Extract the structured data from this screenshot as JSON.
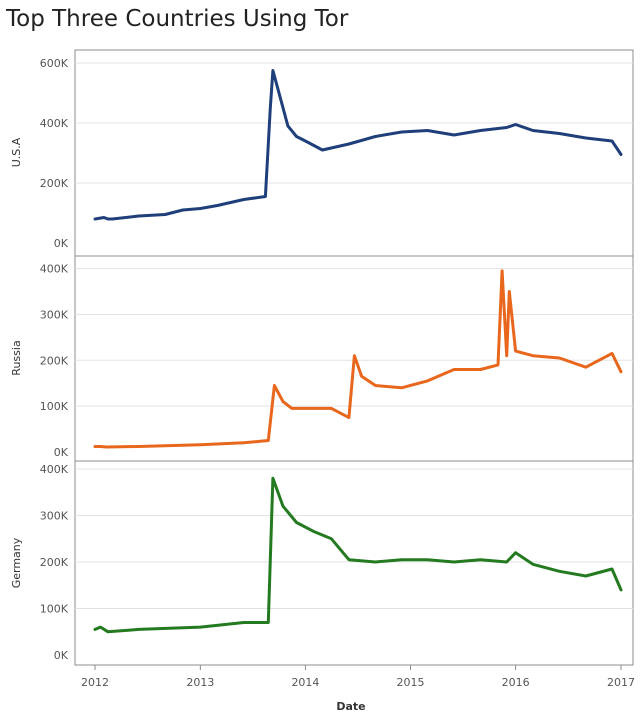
{
  "title": "Top Three Countries Using Tor",
  "chart_data": {
    "type": "line",
    "title": "Top Three Countries Using Tor",
    "xlabel": "Date",
    "x_ticks": [
      "2012",
      "2013",
      "2014",
      "2015",
      "2016",
      "2017"
    ],
    "xlim": [
      "2012-01-01",
      "2017-01-15"
    ],
    "grid": true,
    "panels": [
      {
        "name": "U.S.A",
        "color": "#1f3f7a",
        "ylim": [
          0,
          620000
        ],
        "y_ticks": [
          {
            "value": 0,
            "label": "0K"
          },
          {
            "value": 200000,
            "label": "200K"
          },
          {
            "value": 400000,
            "label": "400K"
          },
          {
            "value": 600000,
            "label": "600K"
          }
        ],
        "x": [
          "2012-01-01",
          "2012-02-01",
          "2012-02-15",
          "2012-03-01",
          "2012-06-01",
          "2012-09-01",
          "2012-11-01",
          "2013-01-01",
          "2013-03-01",
          "2013-06-01",
          "2013-08-15",
          "2013-09-01",
          "2013-09-10",
          "2013-10-01",
          "2013-11-01",
          "2013-12-01",
          "2014-01-01",
          "2014-03-01",
          "2014-06-01",
          "2014-09-01",
          "2014-12-01",
          "2015-03-01",
          "2015-06-01",
          "2015-09-01",
          "2015-12-01",
          "2016-01-01",
          "2016-03-01",
          "2016-06-01",
          "2016-09-01",
          "2016-12-01",
          "2017-01-01"
        ],
        "y": [
          80000,
          85000,
          80000,
          80000,
          90000,
          95000,
          110000,
          115000,
          125000,
          145000,
          155000,
          450000,
          575000,
          500000,
          390000,
          355000,
          340000,
          310000,
          330000,
          355000,
          370000,
          375000,
          360000,
          375000,
          385000,
          395000,
          375000,
          365000,
          350000,
          340000,
          295000
        ]
      },
      {
        "name": "Russia",
        "color": "#e8671c",
        "ylim": [
          0,
          410000
        ],
        "y_ticks": [
          {
            "value": 0,
            "label": "0K"
          },
          {
            "value": 100000,
            "label": "100K"
          },
          {
            "value": 200000,
            "label": "200K"
          },
          {
            "value": 300000,
            "label": "300K"
          },
          {
            "value": 400000,
            "label": "400K"
          }
        ],
        "x": [
          "2012-01-01",
          "2012-01-20",
          "2012-02-10",
          "2012-06-01",
          "2013-01-01",
          "2013-06-01",
          "2013-08-25",
          "2013-09-15",
          "2013-10-15",
          "2013-11-15",
          "2014-01-01",
          "2014-04-01",
          "2014-06-01",
          "2014-06-20",
          "2014-07-15",
          "2014-09-01",
          "2014-12-01",
          "2015-03-01",
          "2015-06-01",
          "2015-09-01",
          "2015-11-01",
          "2015-11-15",
          "2015-12-01",
          "2015-12-10",
          "2016-01-01",
          "2016-03-01",
          "2016-06-01",
          "2016-09-01",
          "2016-12-01",
          "2017-01-01"
        ],
        "y": [
          12000,
          12000,
          11000,
          12000,
          16000,
          20000,
          25000,
          145000,
          110000,
          95000,
          95000,
          95000,
          75000,
          210000,
          165000,
          145000,
          140000,
          155000,
          180000,
          180000,
          190000,
          395000,
          210000,
          350000,
          220000,
          210000,
          205000,
          185000,
          215000,
          175000
        ]
      },
      {
        "name": "Germany",
        "color": "#237a1f",
        "ylim": [
          0,
          400000
        ],
        "y_ticks": [
          {
            "value": 0,
            "label": "0K"
          },
          {
            "value": 100000,
            "label": "100K"
          },
          {
            "value": 200000,
            "label": "200K"
          },
          {
            "value": 300000,
            "label": "300K"
          },
          {
            "value": 400000,
            "label": "400K"
          }
        ],
        "x": [
          "2012-01-01",
          "2012-01-20",
          "2012-02-15",
          "2012-06-01",
          "2013-01-01",
          "2013-06-01",
          "2013-08-25",
          "2013-09-10",
          "2013-10-15",
          "2013-12-01",
          "2014-02-01",
          "2014-04-01",
          "2014-06-01",
          "2014-09-01",
          "2014-12-01",
          "2015-03-01",
          "2015-06-01",
          "2015-09-01",
          "2015-12-01",
          "2016-01-01",
          "2016-03-01",
          "2016-06-01",
          "2016-09-01",
          "2016-12-01",
          "2017-01-01"
        ],
        "y": [
          55000,
          60000,
          50000,
          55000,
          60000,
          70000,
          70000,
          380000,
          320000,
          285000,
          265000,
          250000,
          205000,
          200000,
          205000,
          205000,
          200000,
          205000,
          200000,
          220000,
          195000,
          180000,
          170000,
          185000,
          140000
        ]
      }
    ]
  }
}
